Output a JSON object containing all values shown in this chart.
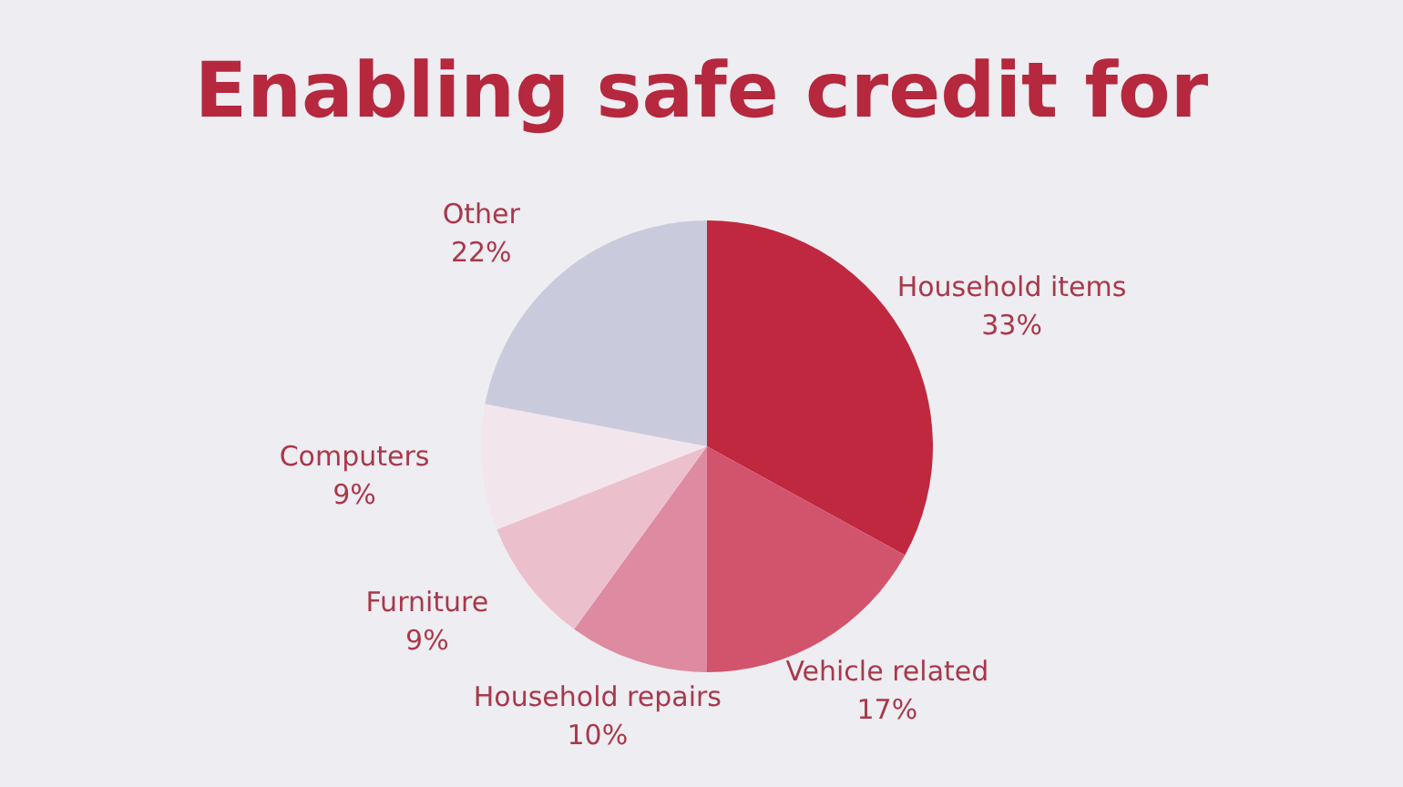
{
  "chart_data": {
    "type": "pie",
    "title": "Enabling safe credit for",
    "categories": [
      "Household items",
      "Vehicle related",
      "Household repairs",
      "Furniture",
      "Computers",
      "Other"
    ],
    "values": [
      33,
      17,
      10,
      9,
      9,
      22
    ],
    "value_labels": [
      "33%",
      "17%",
      "10%",
      "9%",
      "9%",
      "22%"
    ],
    "colors": [
      "#c0283f",
      "#d2546c",
      "#de8aa0",
      "#ebc0cc",
      "#f2e6ec",
      "#c9cbdc"
    ]
  }
}
